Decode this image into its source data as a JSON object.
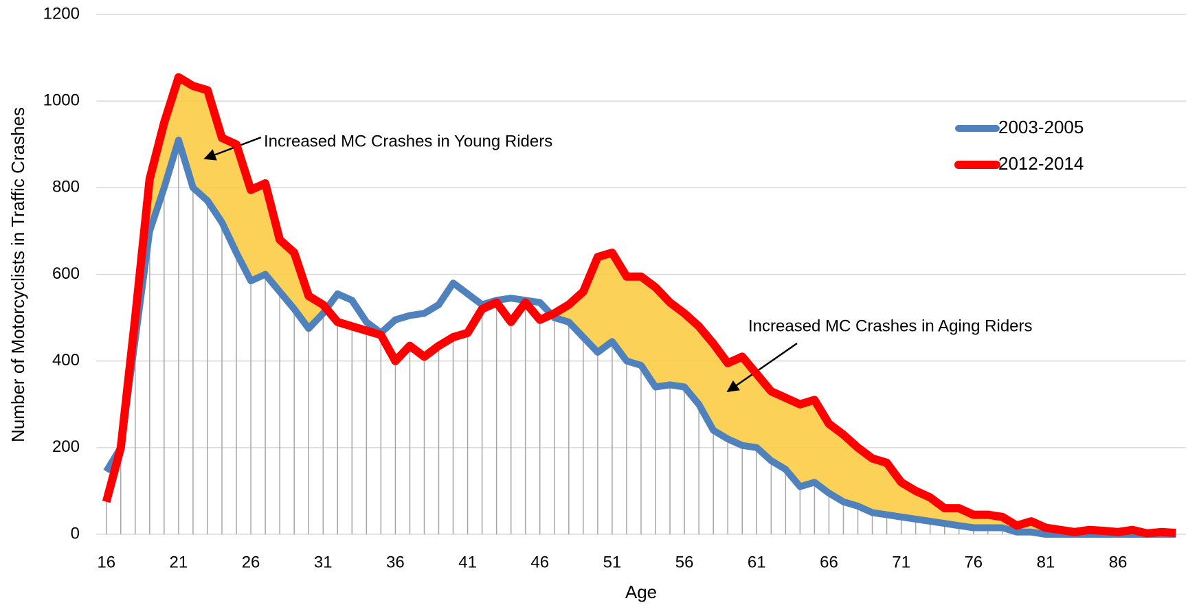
{
  "chart_data": {
    "type": "line",
    "x_label": "Age",
    "y_label": "Number of Motorcyclists in Traffic Crashes",
    "x": [
      16,
      17,
      18,
      19,
      20,
      21,
      22,
      23,
      24,
      25,
      26,
      27,
      28,
      29,
      30,
      31,
      32,
      33,
      34,
      35,
      36,
      37,
      38,
      39,
      40,
      41,
      42,
      43,
      44,
      45,
      46,
      47,
      48,
      49,
      50,
      51,
      52,
      53,
      54,
      55,
      56,
      57,
      58,
      59,
      60,
      61,
      62,
      63,
      64,
      65,
      66,
      67,
      68,
      69,
      70,
      71,
      72,
      73,
      74,
      75,
      76,
      77,
      78,
      79,
      80,
      81,
      82,
      83,
      84,
      85,
      86,
      87,
      88,
      89,
      90
    ],
    "series": [
      {
        "name": "2003-2005",
        "color": "#4f81bd",
        "values": [
          145,
          200,
          450,
          700,
          800,
          910,
          800,
          770,
          720,
          650,
          585,
          600,
          560,
          520,
          475,
          510,
          555,
          540,
          490,
          465,
          495,
          505,
          510,
          530,
          580,
          555,
          530,
          540,
          545,
          540,
          535,
          500,
          490,
          455,
          420,
          445,
          400,
          390,
          340,
          345,
          340,
          300,
          240,
          220,
          205,
          200,
          170,
          150,
          110,
          120,
          95,
          75,
          65,
          50,
          45,
          40,
          35,
          30,
          25,
          20,
          15,
          15,
          15,
          5,
          5,
          0,
          0,
          0,
          0,
          0,
          0,
          0,
          0,
          0,
          0
        ]
      },
      {
        "name": "2012-2014",
        "color": "#ff0000",
        "values": [
          75,
          200,
          500,
          820,
          950,
          1055,
          1035,
          1025,
          915,
          900,
          795,
          810,
          680,
          650,
          550,
          530,
          490,
          480,
          470,
          460,
          400,
          435,
          410,
          435,
          455,
          465,
          520,
          535,
          490,
          535,
          495,
          510,
          530,
          560,
          640,
          650,
          595,
          595,
          570,
          535,
          510,
          480,
          440,
          395,
          410,
          370,
          330,
          315,
          300,
          310,
          255,
          230,
          200,
          175,
          165,
          120,
          100,
          85,
          60,
          60,
          45,
          45,
          40,
          20,
          30,
          15,
          10,
          5,
          10,
          8,
          5,
          10,
          2,
          5,
          3
        ]
      }
    ],
    "fill_color": "#fcc93a",
    "xlim": [
      15.3,
      90.7
    ],
    "xticks": [
      16,
      21,
      26,
      31,
      36,
      41,
      46,
      51,
      56,
      61,
      66,
      71,
      76,
      81,
      86
    ],
    "ylim": [
      0,
      1200
    ],
    "yticks": [
      0,
      200,
      400,
      600,
      800,
      1000,
      1200
    ],
    "grid": true,
    "legend": "upper right",
    "annotations": [
      "Increased MC Crashes in Young Riders",
      "Increased MC Crashes in Aging Riders"
    ]
  }
}
